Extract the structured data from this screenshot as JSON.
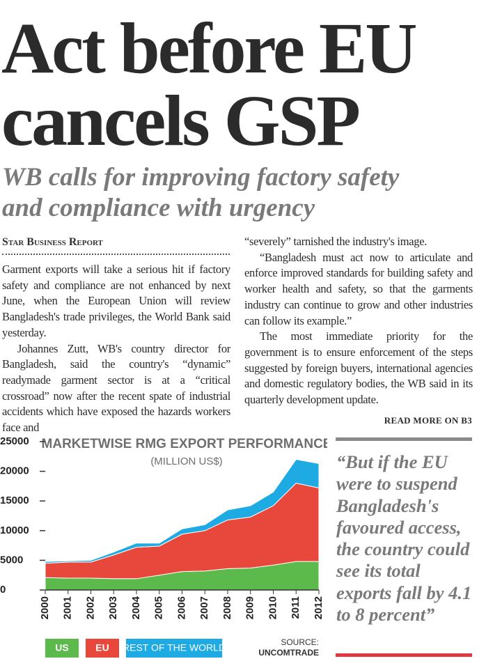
{
  "headline": [
    "Act before EU",
    "cancels GSP"
  ],
  "subheadline": [
    "WB calls for improving factory safety",
    "and compliance with urgency"
  ],
  "byline": "Star Business Report",
  "columns": [
    [
      "Garment exports will take a serious hit if factory safety and compliance are not enhanced by next June, when the European Union will review Bangladesh's trade privileges, the World Bank said yesterday.",
      "Johannes Zutt, WB's country director for Bangladesh, said the country's “dynamic” readymade garment sector is at a “critical crossroad” now after the recent spate of industrial accidents which have exposed the hazards workers face and"
    ],
    [
      "“severely” tarnished the industry's image.",
      "“Bangladesh must act now to articulate and enforce improved standards for building safety and worker health and safety, so that the garments industry can continue to grow and other industries can follow its example.”",
      "The most immediate priority for the government is to ensure enforcement of the steps suggested by foreign buyers, international agencies and domestic regulatory bodies, the WB said in its quarterly development update."
    ]
  ],
  "read_more": "READ MORE ON B3",
  "quote": "“But if the EU were to suspend Bangladesh's favoured access, the country could see its total exports fall by 4.1 to 8 percent”",
  "chart_data": {
    "type": "stacked-area",
    "title": "MARKETWISE RMG EXPORT PERFORMANCE",
    "subtitle": "(MILLION US$)",
    "categories": [
      "2000",
      "2001",
      "2002",
      "2003",
      "2004",
      "2005",
      "2006",
      "2007",
      "2008",
      "2009",
      "2010",
      "2011",
      "2012"
    ],
    "series": [
      {
        "name": "US",
        "color": "#5cb94b",
        "values": [
          2100,
          2000,
          2000,
          1900,
          1900,
          2500,
          3100,
          3200,
          3600,
          3700,
          4200,
          4800,
          4800
        ]
      },
      {
        "name": "EU",
        "color": "#e8473b",
        "values": [
          2400,
          2700,
          2700,
          4000,
          5300,
          4900,
          6300,
          6800,
          8200,
          8600,
          10000,
          13200,
          12400
        ]
      },
      {
        "name": "REST OF THE WORLD",
        "color": "#1eaae2",
        "values": [
          300,
          200,
          300,
          500,
          700,
          500,
          900,
          1000,
          1700,
          1900,
          2300,
          4000,
          4100
        ]
      }
    ],
    "ylim": [
      0,
      25000
    ],
    "yticks": [
      0,
      5000,
      10000,
      15000,
      20000,
      25000
    ],
    "source_label": "SOURCE:",
    "source": "UNCOMTRADE"
  }
}
